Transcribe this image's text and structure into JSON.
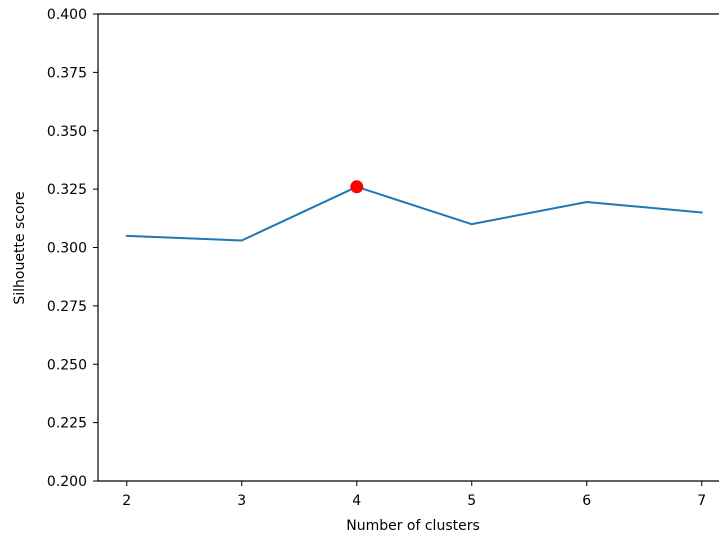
{
  "chart_data": {
    "type": "line",
    "title": "",
    "xlabel": "Number of clusters",
    "ylabel": "Silhouette score",
    "x": [
      2,
      3,
      4,
      5,
      6,
      7
    ],
    "series": [
      {
        "values": [
          0.305,
          0.303,
          0.326,
          0.31,
          0.3195,
          0.315
        ],
        "color": "#1f77b4"
      }
    ],
    "highlight": {
      "x": 4,
      "y": 0.326,
      "color": "#ff0000"
    },
    "xlim": [
      1.75,
      7.15
    ],
    "ylim": [
      0.2,
      0.4
    ],
    "xticks": [
      2,
      3,
      4,
      5,
      6,
      7
    ],
    "yticks": [
      0.2,
      0.225,
      0.25,
      0.275,
      0.3,
      0.325,
      0.35,
      0.375,
      0.4
    ],
    "ytick_labels": [
      "0.200",
      "0.225",
      "0.250",
      "0.275",
      "0.300",
      "0.325",
      "0.350",
      "0.375",
      "0.400"
    ],
    "spines": [
      "left",
      "bottom",
      "top"
    ],
    "grid": false,
    "legend": "none"
  }
}
